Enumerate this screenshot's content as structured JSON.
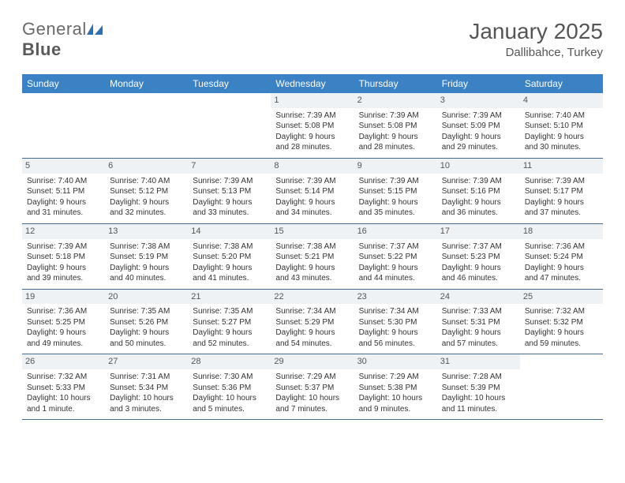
{
  "brand": {
    "part1": "General",
    "part2": "Blue"
  },
  "title": "January 2025",
  "location": "Dallibahce, Turkey",
  "colors": {
    "header_bg": "#3b82c4",
    "header_fg": "#ffffff",
    "daynum_bg": "#eef2f5",
    "cell_border": "#4a6a8a",
    "logo_blue": "#2d6fb3",
    "text": "#333333"
  },
  "dayHeaders": [
    "Sunday",
    "Monday",
    "Tuesday",
    "Wednesday",
    "Thursday",
    "Friday",
    "Saturday"
  ],
  "weeks": [
    [
      {
        "n": "",
        "lines": []
      },
      {
        "n": "",
        "lines": []
      },
      {
        "n": "",
        "lines": []
      },
      {
        "n": "1",
        "lines": [
          "Sunrise: 7:39 AM",
          "Sunset: 5:08 PM",
          "Daylight: 9 hours and 28 minutes."
        ]
      },
      {
        "n": "2",
        "lines": [
          "Sunrise: 7:39 AM",
          "Sunset: 5:08 PM",
          "Daylight: 9 hours and 28 minutes."
        ]
      },
      {
        "n": "3",
        "lines": [
          "Sunrise: 7:39 AM",
          "Sunset: 5:09 PM",
          "Daylight: 9 hours and 29 minutes."
        ]
      },
      {
        "n": "4",
        "lines": [
          "Sunrise: 7:40 AM",
          "Sunset: 5:10 PM",
          "Daylight: 9 hours and 30 minutes."
        ]
      }
    ],
    [
      {
        "n": "5",
        "lines": [
          "Sunrise: 7:40 AM",
          "Sunset: 5:11 PM",
          "Daylight: 9 hours and 31 minutes."
        ]
      },
      {
        "n": "6",
        "lines": [
          "Sunrise: 7:40 AM",
          "Sunset: 5:12 PM",
          "Daylight: 9 hours and 32 minutes."
        ]
      },
      {
        "n": "7",
        "lines": [
          "Sunrise: 7:39 AM",
          "Sunset: 5:13 PM",
          "Daylight: 9 hours and 33 minutes."
        ]
      },
      {
        "n": "8",
        "lines": [
          "Sunrise: 7:39 AM",
          "Sunset: 5:14 PM",
          "Daylight: 9 hours and 34 minutes."
        ]
      },
      {
        "n": "9",
        "lines": [
          "Sunrise: 7:39 AM",
          "Sunset: 5:15 PM",
          "Daylight: 9 hours and 35 minutes."
        ]
      },
      {
        "n": "10",
        "lines": [
          "Sunrise: 7:39 AM",
          "Sunset: 5:16 PM",
          "Daylight: 9 hours and 36 minutes."
        ]
      },
      {
        "n": "11",
        "lines": [
          "Sunrise: 7:39 AM",
          "Sunset: 5:17 PM",
          "Daylight: 9 hours and 37 minutes."
        ]
      }
    ],
    [
      {
        "n": "12",
        "lines": [
          "Sunrise: 7:39 AM",
          "Sunset: 5:18 PM",
          "Daylight: 9 hours and 39 minutes."
        ]
      },
      {
        "n": "13",
        "lines": [
          "Sunrise: 7:38 AM",
          "Sunset: 5:19 PM",
          "Daylight: 9 hours and 40 minutes."
        ]
      },
      {
        "n": "14",
        "lines": [
          "Sunrise: 7:38 AM",
          "Sunset: 5:20 PM",
          "Daylight: 9 hours and 41 minutes."
        ]
      },
      {
        "n": "15",
        "lines": [
          "Sunrise: 7:38 AM",
          "Sunset: 5:21 PM",
          "Daylight: 9 hours and 43 minutes."
        ]
      },
      {
        "n": "16",
        "lines": [
          "Sunrise: 7:37 AM",
          "Sunset: 5:22 PM",
          "Daylight: 9 hours and 44 minutes."
        ]
      },
      {
        "n": "17",
        "lines": [
          "Sunrise: 7:37 AM",
          "Sunset: 5:23 PM",
          "Daylight: 9 hours and 46 minutes."
        ]
      },
      {
        "n": "18",
        "lines": [
          "Sunrise: 7:36 AM",
          "Sunset: 5:24 PM",
          "Daylight: 9 hours and 47 minutes."
        ]
      }
    ],
    [
      {
        "n": "19",
        "lines": [
          "Sunrise: 7:36 AM",
          "Sunset: 5:25 PM",
          "Daylight: 9 hours and 49 minutes."
        ]
      },
      {
        "n": "20",
        "lines": [
          "Sunrise: 7:35 AM",
          "Sunset: 5:26 PM",
          "Daylight: 9 hours and 50 minutes."
        ]
      },
      {
        "n": "21",
        "lines": [
          "Sunrise: 7:35 AM",
          "Sunset: 5:27 PM",
          "Daylight: 9 hours and 52 minutes."
        ]
      },
      {
        "n": "22",
        "lines": [
          "Sunrise: 7:34 AM",
          "Sunset: 5:29 PM",
          "Daylight: 9 hours and 54 minutes."
        ]
      },
      {
        "n": "23",
        "lines": [
          "Sunrise: 7:34 AM",
          "Sunset: 5:30 PM",
          "Daylight: 9 hours and 56 minutes."
        ]
      },
      {
        "n": "24",
        "lines": [
          "Sunrise: 7:33 AM",
          "Sunset: 5:31 PM",
          "Daylight: 9 hours and 57 minutes."
        ]
      },
      {
        "n": "25",
        "lines": [
          "Sunrise: 7:32 AM",
          "Sunset: 5:32 PM",
          "Daylight: 9 hours and 59 minutes."
        ]
      }
    ],
    [
      {
        "n": "26",
        "lines": [
          "Sunrise: 7:32 AM",
          "Sunset: 5:33 PM",
          "Daylight: 10 hours and 1 minute."
        ]
      },
      {
        "n": "27",
        "lines": [
          "Sunrise: 7:31 AM",
          "Sunset: 5:34 PM",
          "Daylight: 10 hours and 3 minutes."
        ]
      },
      {
        "n": "28",
        "lines": [
          "Sunrise: 7:30 AM",
          "Sunset: 5:36 PM",
          "Daylight: 10 hours and 5 minutes."
        ]
      },
      {
        "n": "29",
        "lines": [
          "Sunrise: 7:29 AM",
          "Sunset: 5:37 PM",
          "Daylight: 10 hours and 7 minutes."
        ]
      },
      {
        "n": "30",
        "lines": [
          "Sunrise: 7:29 AM",
          "Sunset: 5:38 PM",
          "Daylight: 10 hours and 9 minutes."
        ]
      },
      {
        "n": "31",
        "lines": [
          "Sunrise: 7:28 AM",
          "Sunset: 5:39 PM",
          "Daylight: 10 hours and 11 minutes."
        ]
      },
      {
        "n": "",
        "lines": []
      }
    ]
  ]
}
